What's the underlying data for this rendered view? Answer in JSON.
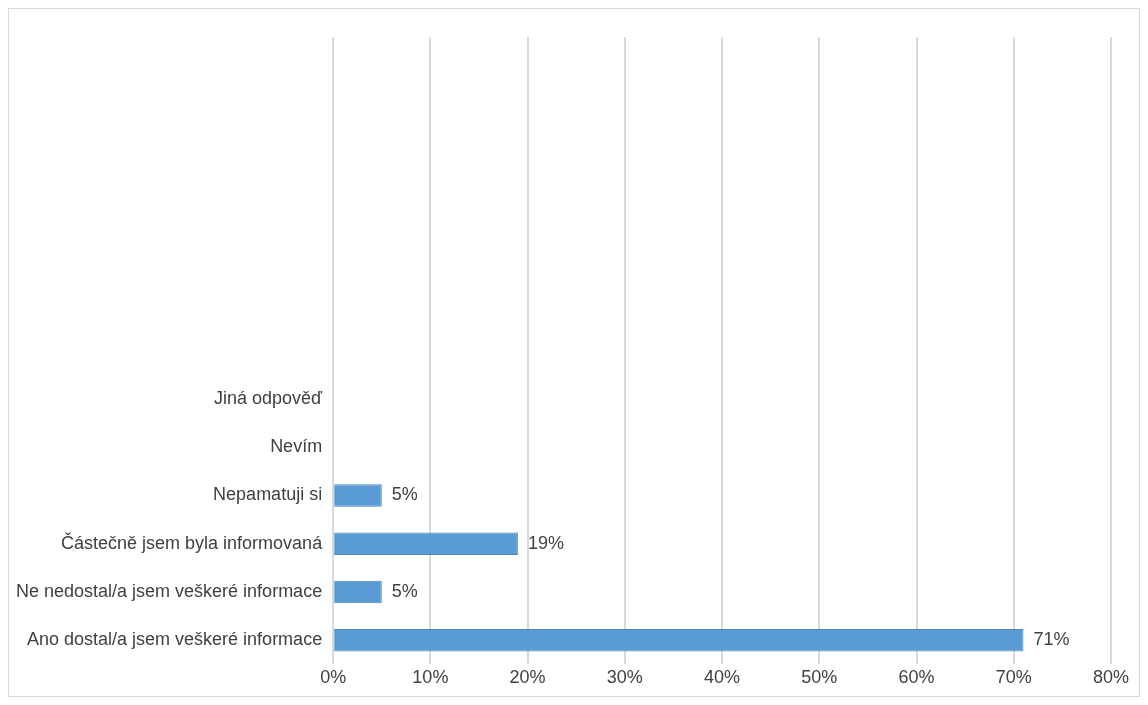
{
  "chart_data": {
    "type": "bar",
    "orientation": "horizontal",
    "categories": [
      null,
      null,
      null,
      null,
      null,
      null,
      null,
      "Jiná odpověď",
      "Nevím",
      "Nepamatuji si",
      "Částečně jsem byla informovaná",
      "Ne nedostal/a jsem veškeré informace",
      "Ano dostal/a jsem veškeré informace"
    ],
    "values": [
      null,
      null,
      null,
      null,
      null,
      null,
      null,
      0,
      0,
      5,
      19,
      5,
      71
    ],
    "value_labels": [
      null,
      null,
      null,
      null,
      null,
      null,
      null,
      null,
      null,
      "5%",
      "19%",
      "5%",
      "71%"
    ],
    "color": "#5b9bd5",
    "xlim": [
      0,
      80
    ],
    "xticks": [
      {
        "value": 0,
        "label": "0%"
      },
      {
        "value": 10,
        "label": "10%"
      },
      {
        "value": 20,
        "label": "20%"
      },
      {
        "value": 30,
        "label": "30%"
      },
      {
        "value": 40,
        "label": "40%"
      },
      {
        "value": 50,
        "label": "50%"
      },
      {
        "value": 60,
        "label": "60%"
      },
      {
        "value": 70,
        "label": "70%"
      },
      {
        "value": 80,
        "label": "80%"
      }
    ],
    "grid": "x",
    "legend": false
  }
}
